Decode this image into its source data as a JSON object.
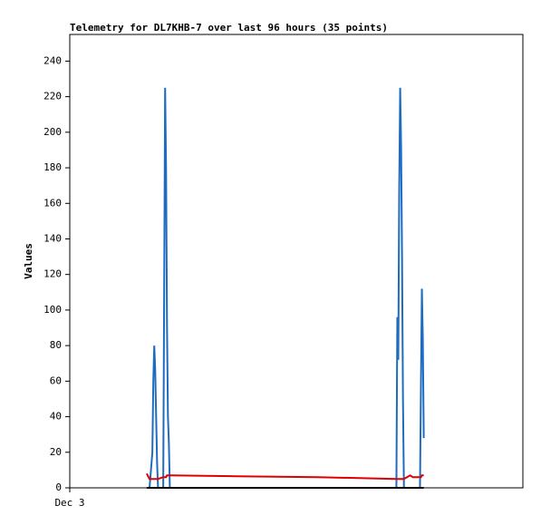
{
  "chart_data": {
    "type": "line",
    "title": "Telemetry for DL7KHB-7 over last 96 hours (35 points)",
    "y_label": "Values",
    "x": [
      16.3,
      16.9,
      17.5,
      17.7,
      17.9,
      18.1,
      18.3,
      18.5,
      18.7,
      19.8,
      20.0,
      20.2,
      20.4,
      20.6,
      20.8,
      21.0,
      21.2,
      35.2,
      52.5,
      69.2,
      69.4,
      69.6,
      69.8,
      70.0,
      70.2,
      70.4,
      70.6,
      70.8,
      72.1,
      72.7,
      74.2,
      74.4,
      74.6,
      74.8,
      75.0
    ],
    "series": [
      {
        "color": "#1e6cc0",
        "values": [
          0,
          0,
          20,
          60,
          80,
          66,
          40,
          14,
          0,
          0,
          112,
          225,
          180,
          92,
          40,
          25,
          0,
          0,
          0,
          0,
          96,
          72,
          168,
          225,
          192,
          128,
          48,
          0,
          0,
          0,
          0,
          56,
          112,
          84,
          28
        ]
      },
      {
        "color": "#e00000",
        "values": [
          8,
          5,
          5,
          5,
          5,
          5,
          5,
          5,
          5,
          6,
          6,
          6,
          6,
          7,
          7,
          7,
          7,
          6.5,
          6,
          5,
          5,
          5,
          5,
          5,
          5,
          5,
          5,
          5,
          7,
          6,
          6,
          6,
          7,
          7,
          7
        ]
      },
      {
        "color": "#000000",
        "values": [
          0,
          0,
          0,
          0,
          0,
          0,
          0,
          0,
          0,
          0,
          0,
          0,
          0,
          0,
          0,
          0,
          0,
          0,
          0,
          0,
          0,
          0,
          0,
          0,
          0,
          0,
          0,
          0,
          0,
          0,
          0,
          0,
          0,
          0,
          0
        ]
      }
    ],
    "xlim": [
      0,
      96
    ],
    "xticks": [
      {
        "value": 0,
        "label": "Dec 3"
      }
    ],
    "ylim": [
      0,
      255
    ],
    "yticks": [
      0,
      20,
      40,
      60,
      80,
      100,
      120,
      140,
      160,
      180,
      200,
      220,
      240
    ]
  }
}
